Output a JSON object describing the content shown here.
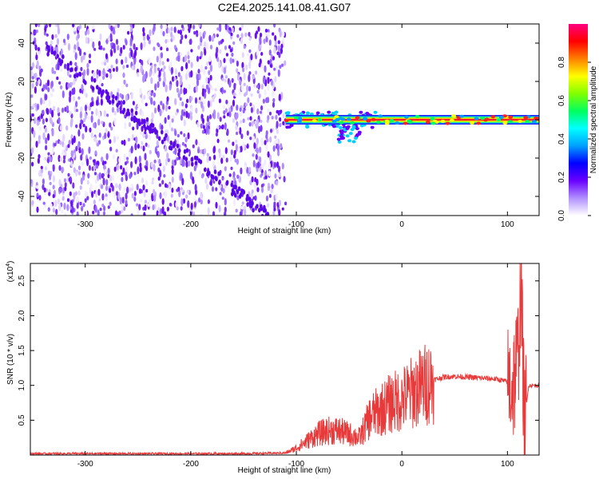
{
  "title": "C2E4.2025.141.08.41.G07",
  "colors": {
    "signal_line": "#e83a3a",
    "spectrogram_noise": "#7a35f0",
    "axis": "#000000"
  },
  "chart_data": [
    {
      "type": "heatmap",
      "name": "spectrogram",
      "xlabel": "Height of straight line (km)",
      "ylabel": "Frequency (Hz)",
      "xlim": [
        -352,
        130
      ],
      "ylim": [
        -50,
        50
      ],
      "x_ticks": [
        -300,
        -200,
        -100,
        0,
        100
      ],
      "y_ticks": [
        -40,
        -20,
        0,
        20,
        40
      ],
      "colorbar": {
        "label": "Normalized spectral amplitude",
        "range": [
          0.0,
          1.0
        ],
        "ticks": [
          "0.0",
          "0.2",
          "0.4",
          "0.6",
          "0.8"
        ],
        "colormap": [
          "#ffffff",
          "#b090ff",
          "#6a00ff",
          "#0000ff",
          "#00a0ff",
          "#00ffff",
          "#00ff60",
          "#80ff00",
          "#ffff00",
          "#ff8000",
          "#ff0000",
          "#ff0080"
        ]
      },
      "regions": [
        {
          "x_start": -352,
          "x_end": -110,
          "freq_range": [
            -50,
            50
          ],
          "amplitude": 0.15,
          "description_kind": "noise"
        },
        {
          "x_start": -110,
          "x_end": 130,
          "center_freq": 0,
          "amplitude": 0.95,
          "description_kind": "carrier"
        }
      ]
    },
    {
      "type": "line",
      "name": "snr",
      "xlabel": "Height of straight line (km)",
      "ylabel": "SNR (10 * v/v)",
      "y_multiplier_label": "(x10",
      "y_multiplier_exp": "4",
      "y_multiplier_close": ")",
      "xlim": [
        -352,
        130
      ],
      "ylim": [
        0,
        2.75
      ],
      "x_ticks": [
        -300,
        -200,
        -100,
        0,
        100
      ],
      "y_ticks": [
        "0.5",
        "1.0",
        "1.5",
        "2.0",
        "2.5"
      ],
      "series": [
        {
          "color": "#e83a3a",
          "x": [
            -352,
            -250,
            -150,
            -110,
            -100,
            -90,
            -80,
            -70,
            -60,
            -50,
            -40,
            -30,
            -20,
            -10,
            0,
            10,
            20,
            30,
            40,
            50,
            60,
            70,
            80,
            90,
            100,
            105,
            110,
            113,
            116,
            120,
            130
          ],
          "y": [
            0.02,
            0.02,
            0.02,
            0.03,
            0.1,
            0.2,
            0.3,
            0.35,
            0.35,
            0.3,
            0.25,
            0.55,
            0.65,
            0.75,
            0.8,
            0.9,
            1.0,
            1.08,
            1.12,
            1.13,
            1.12,
            1.11,
            1.1,
            1.09,
            1.05,
            1.0,
            1.4,
            2.5,
            0.4,
            1.0,
            1.0
          ]
        }
      ]
    }
  ]
}
